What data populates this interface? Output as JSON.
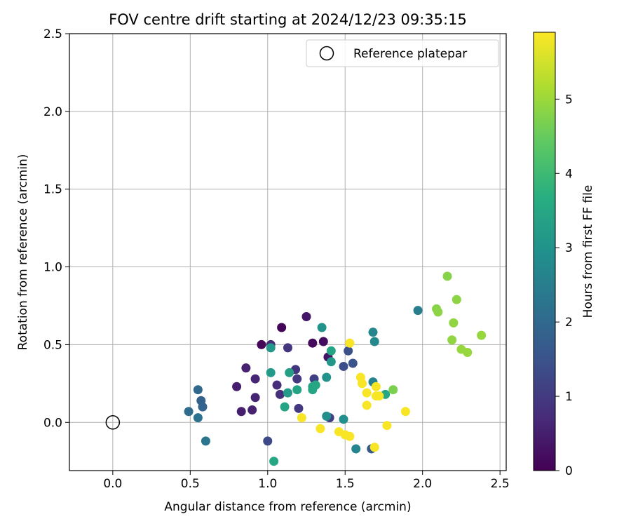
{
  "chart_data": {
    "type": "scatter",
    "title": "FOV centre drift starting at 2024/12/23 09:35:15",
    "xlabel": "Angular distance from reference (arcmin)",
    "ylabel": "Rotation from reference (arcmin)",
    "xlim": [
      -0.28,
      2.54
    ],
    "ylim": [
      -0.31,
      2.5
    ],
    "xticks": [
      "0.0",
      "0.5",
      "1.0",
      "1.5",
      "2.0",
      "2.5"
    ],
    "yticks": [
      "0.0",
      "0.5",
      "1.0",
      "1.5",
      "2.0",
      "2.5"
    ],
    "grid": true,
    "legend": {
      "location": "top-right",
      "label": "Reference platepar"
    },
    "reference_point": {
      "x": 0.0,
      "y": 0.0
    },
    "colorbar": {
      "label": "Hours from first FF file",
      "range": [
        0,
        5.9
      ],
      "ticks": [
        "0",
        "1",
        "2",
        "3",
        "4",
        "5"
      ],
      "colormap": "viridis"
    },
    "points": [
      {
        "x": 1.09,
        "y": 0.61,
        "hours": 0.05
      },
      {
        "x": 0.96,
        "y": 0.5,
        "hours": 0.1
      },
      {
        "x": 1.29,
        "y": 0.51,
        "hours": 0.15
      },
      {
        "x": 1.36,
        "y": 0.52,
        "hours": 0.2
      },
      {
        "x": 1.39,
        "y": 0.42,
        "hours": 0.3
      },
      {
        "x": 1.25,
        "y": 0.68,
        "hours": 0.35
      },
      {
        "x": 0.8,
        "y": 0.23,
        "hours": 0.45
      },
      {
        "x": 0.83,
        "y": 0.07,
        "hours": 0.5
      },
      {
        "x": 0.86,
        "y": 0.35,
        "hours": 0.55
      },
      {
        "x": 0.9,
        "y": 0.08,
        "hours": 0.55
      },
      {
        "x": 0.92,
        "y": 0.16,
        "hours": 0.6
      },
      {
        "x": 0.92,
        "y": 0.28,
        "hours": 0.6
      },
      {
        "x": 1.02,
        "y": 0.5,
        "hours": 0.7
      },
      {
        "x": 1.06,
        "y": 0.24,
        "hours": 0.75
      },
      {
        "x": 1.08,
        "y": 0.18,
        "hours": 0.8
      },
      {
        "x": 1.13,
        "y": 0.48,
        "hours": 0.9
      },
      {
        "x": 1.18,
        "y": 0.34,
        "hours": 0.9
      },
      {
        "x": 1.19,
        "y": 0.28,
        "hours": 0.95
      },
      {
        "x": 1.2,
        "y": 0.09,
        "hours": 0.95
      },
      {
        "x": 1.3,
        "y": 0.28,
        "hours": 1.1
      },
      {
        "x": 1.4,
        "y": 0.03,
        "hours": 1.1
      },
      {
        "x": 1.0,
        "y": -0.12,
        "hours": 1.3
      },
      {
        "x": 1.49,
        "y": 0.36,
        "hours": 1.4
      },
      {
        "x": 1.52,
        "y": 0.46,
        "hours": 1.45
      },
      {
        "x": 1.55,
        "y": 0.38,
        "hours": 1.5
      },
      {
        "x": 1.67,
        "y": -0.17,
        "hours": 1.6
      },
      {
        "x": 0.57,
        "y": 0.14,
        "hours": 1.8
      },
      {
        "x": 0.58,
        "y": 0.1,
        "hours": 1.9
      },
      {
        "x": 0.55,
        "y": 0.21,
        "hours": 2.0
      },
      {
        "x": 0.49,
        "y": 0.07,
        "hours": 2.05
      },
      {
        "x": 0.55,
        "y": 0.03,
        "hours": 2.2
      },
      {
        "x": 0.6,
        "y": -0.12,
        "hours": 2.3
      },
      {
        "x": 1.97,
        "y": 0.72,
        "hours": 2.5
      },
      {
        "x": 1.68,
        "y": 0.26,
        "hours": 2.6
      },
      {
        "x": 1.57,
        "y": -0.17,
        "hours": 2.65
      },
      {
        "x": 1.68,
        "y": 0.58,
        "hours": 2.7
      },
      {
        "x": 1.69,
        "y": 0.52,
        "hours": 2.75
      },
      {
        "x": 1.49,
        "y": 0.02,
        "hours": 2.9
      },
      {
        "x": 1.38,
        "y": 0.04,
        "hours": 2.9
      },
      {
        "x": 1.35,
        "y": 0.61,
        "hours": 3.0
      },
      {
        "x": 1.38,
        "y": 0.29,
        "hours": 3.0
      },
      {
        "x": 1.41,
        "y": 0.39,
        "hours": 3.1
      },
      {
        "x": 1.02,
        "y": 0.48,
        "hours": 3.1
      },
      {
        "x": 1.02,
        "y": 0.32,
        "hours": 3.15
      },
      {
        "x": 1.13,
        "y": 0.19,
        "hours": 3.2
      },
      {
        "x": 1.14,
        "y": 0.32,
        "hours": 3.3
      },
      {
        "x": 1.11,
        "y": 0.1,
        "hours": 3.4
      },
      {
        "x": 1.19,
        "y": 0.21,
        "hours": 3.4
      },
      {
        "x": 1.29,
        "y": 0.23,
        "hours": 3.45
      },
      {
        "x": 1.29,
        "y": 0.21,
        "hours": 3.45
      },
      {
        "x": 1.41,
        "y": 0.46,
        "hours": 3.45
      },
      {
        "x": 1.31,
        "y": 0.24,
        "hours": 3.5
      },
      {
        "x": 1.04,
        "y": -0.25,
        "hours": 3.5
      },
      {
        "x": 1.76,
        "y": 0.18,
        "hours": 3.5
      },
      {
        "x": 2.16,
        "y": 0.94,
        "hours": 4.8
      },
      {
        "x": 2.09,
        "y": 0.73,
        "hours": 4.8
      },
      {
        "x": 2.1,
        "y": 0.71,
        "hours": 4.85
      },
      {
        "x": 2.22,
        "y": 0.79,
        "hours": 4.85
      },
      {
        "x": 2.2,
        "y": 0.64,
        "hours": 4.9
      },
      {
        "x": 2.19,
        "y": 0.53,
        "hours": 4.9
      },
      {
        "x": 2.25,
        "y": 0.47,
        "hours": 4.95
      },
      {
        "x": 2.29,
        "y": 0.45,
        "hours": 4.95
      },
      {
        "x": 2.38,
        "y": 0.56,
        "hours": 4.95
      },
      {
        "x": 1.81,
        "y": 0.21,
        "hours": 4.7
      },
      {
        "x": 1.53,
        "y": 0.51,
        "hours": 5.85
      },
      {
        "x": 1.6,
        "y": 0.29,
        "hours": 5.85
      },
      {
        "x": 1.61,
        "y": 0.25,
        "hours": 5.85
      },
      {
        "x": 1.64,
        "y": 0.19,
        "hours": 5.85
      },
      {
        "x": 1.64,
        "y": 0.11,
        "hours": 5.85
      },
      {
        "x": 1.7,
        "y": 0.23,
        "hours": 5.85
      },
      {
        "x": 1.7,
        "y": 0.17,
        "hours": 5.85
      },
      {
        "x": 1.72,
        "y": 0.17,
        "hours": 5.85
      },
      {
        "x": 1.77,
        "y": -0.02,
        "hours": 5.85
      },
      {
        "x": 1.89,
        "y": 0.07,
        "hours": 5.85
      },
      {
        "x": 1.46,
        "y": -0.06,
        "hours": 5.85
      },
      {
        "x": 1.5,
        "y": -0.08,
        "hours": 5.85
      },
      {
        "x": 1.53,
        "y": -0.09,
        "hours": 5.85
      },
      {
        "x": 1.69,
        "y": -0.16,
        "hours": 5.85
      },
      {
        "x": 1.34,
        "y": -0.04,
        "hours": 5.85
      },
      {
        "x": 1.22,
        "y": 0.03,
        "hours": 5.85
      }
    ]
  }
}
